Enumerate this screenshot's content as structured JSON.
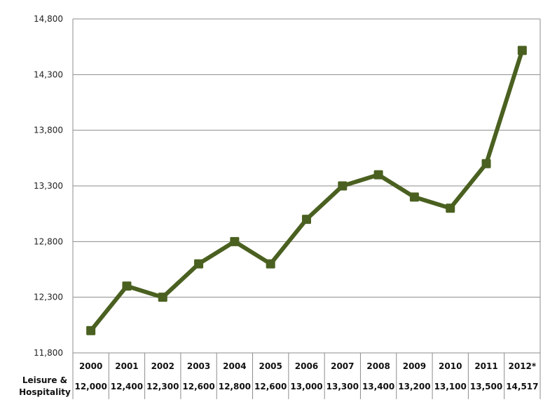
{
  "chart_data": {
    "type": "line",
    "title": "",
    "xlabel": "",
    "ylabel": "",
    "categories": [
      "2000",
      "2001",
      "2002",
      "2003",
      "2004",
      "2005",
      "2006",
      "2007",
      "2008",
      "2009",
      "2010",
      "2011",
      "2012*"
    ],
    "series": [
      {
        "name": "Leisure & Hospitality",
        "values": [
          12000,
          12400,
          12300,
          12600,
          12800,
          12600,
          13000,
          13300,
          13400,
          13200,
          13100,
          13500,
          14517
        ],
        "value_labels": [
          "12,000",
          "12,400",
          "12,300",
          "12,600",
          "12,800",
          "12,600",
          "13,000",
          "13,300",
          "13,400",
          "13,200",
          "13,100",
          "13,500",
          "14,517"
        ],
        "color": "#4a6020"
      }
    ],
    "ylim": [
      11800,
      14800
    ],
    "yticks": [
      11800,
      12300,
      12800,
      13300,
      13800,
      14300,
      14800
    ],
    "ytick_labels": [
      "11,800",
      "12,300",
      "12,800",
      "13,300",
      "13,800",
      "14,300",
      "14,800"
    ],
    "grid": true,
    "data_table": {
      "row_label_line1": "Leisure &",
      "row_label_line2": "Hospitality"
    },
    "colors": {
      "line": "#4a6020",
      "marker": "#4a6020",
      "grid": "#8c8c8c",
      "border": "#8c8c8c"
    }
  }
}
